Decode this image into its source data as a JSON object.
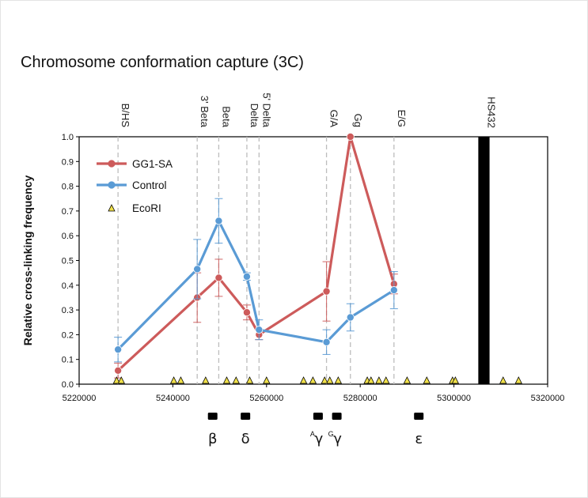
{
  "figure": {
    "title": "Chromosome conformation capture (3C)"
  },
  "chart_data": {
    "type": "line",
    "title": "Chromosome conformation capture (3C)",
    "xlabel": "",
    "ylabel": "Relative cross-linking frequency",
    "xlim": [
      5220000,
      5320000
    ],
    "ylim": [
      0,
      1.0
    ],
    "xticks": [
      5220000,
      5240000,
      5260000,
      5280000,
      5300000,
      5320000
    ],
    "xtick_labels": [
      "5220000",
      "5240000",
      "5260000",
      "5280000",
      "5300000",
      "5320000"
    ],
    "yticks": [
      0,
      0.1,
      0.2,
      0.3,
      0.4,
      0.5,
      0.6,
      0.7,
      0.8,
      0.9,
      1.0
    ],
    "ytick_labels": [
      "0.0",
      "0.1",
      "0.2",
      "0.3",
      "0.4",
      "0.5",
      "0.6",
      "0.7",
      "0.8",
      "0.9",
      "1.0"
    ],
    "grid": false,
    "legend_position": "top-left",
    "series": [
      {
        "name": "GG1-SA",
        "color": "#cd5b5b",
        "x": [
          5228300,
          5245200,
          5249800,
          5255800,
          5258400,
          5272800,
          5277900,
          5287200
        ],
        "y": [
          0.055,
          0.35,
          0.43,
          0.29,
          0.2,
          0.375,
          1.0,
          0.405
        ],
        "err": [
          0.03,
          0.1,
          0.075,
          0.03,
          0.02,
          0.12,
          0,
          0.04
        ]
      },
      {
        "name": "Control",
        "color": "#5a9bd5",
        "x": [
          5228300,
          5245200,
          5249800,
          5255800,
          5258400,
          5272800,
          5277900,
          5287200
        ],
        "y": [
          0.14,
          0.465,
          0.66,
          0.435,
          0.22,
          0.17,
          0.27,
          0.38
        ],
        "err": [
          0.05,
          0.12,
          0.09,
          0.015,
          0.04,
          0.05,
          0.055,
          0.075
        ]
      }
    ],
    "ecori": {
      "name": "EcoRI",
      "color": "#f0e04a",
      "x": [
        5228000,
        5229000,
        5240200,
        5241700,
        5247000,
        5251500,
        5253500,
        5256400,
        5260000,
        5267900,
        5269900,
        5272400,
        5273500,
        5275300,
        5281500,
        5282300,
        5284000,
        5285500,
        5290000,
        5294200,
        5299700,
        5300300,
        5310500,
        5313800
      ]
    },
    "vertical_markers": [
      {
        "label": "B/HS",
        "x": 5228300
      },
      {
        "label": "3' Beta",
        "x": 5245200
      },
      {
        "label": "Beta",
        "x": 5249800
      },
      {
        "label": "Delta",
        "x": 5255800
      },
      {
        "label": "5' Delta",
        "x": 5258400
      },
      {
        "label": "G/A",
        "x": 5272800
      },
      {
        "label": "Gg",
        "x": 5277900
      },
      {
        "label": "E/G",
        "x": 5287200
      }
    ],
    "hs_marker": {
      "label": "HS432",
      "x_start": 5305200,
      "x_end": 5307600
    },
    "genes": [
      {
        "symbol": "β",
        "sup": "",
        "x": 5248500
      },
      {
        "symbol": "δ",
        "sup": "",
        "x": 5255500
      },
      {
        "symbol": "γ",
        "sup": "A",
        "x": 5271000
      },
      {
        "symbol": "γ",
        "sup": "G",
        "x": 5275000
      },
      {
        "symbol": "ε",
        "sup": "",
        "x": 5292500
      }
    ]
  }
}
